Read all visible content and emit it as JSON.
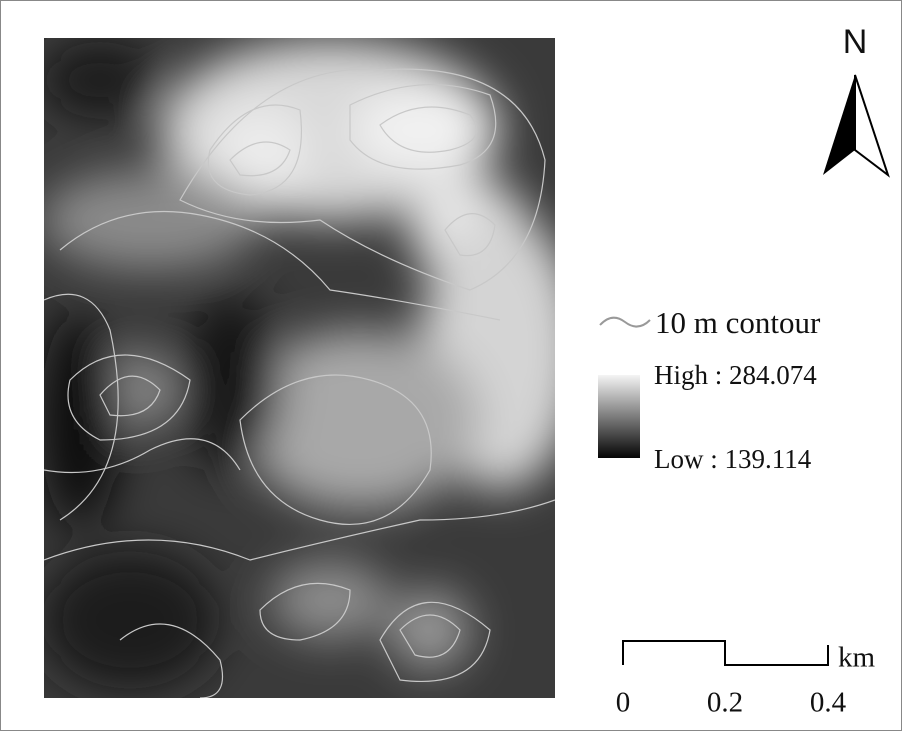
{
  "north_arrow": {
    "label": "N"
  },
  "legend": {
    "contour": "10 m contour",
    "high": "High : 284.074",
    "low": "Low : 139.114"
  },
  "scale_bar": {
    "unit": "km",
    "labels": [
      "0",
      "0.2",
      "0.4"
    ]
  }
}
